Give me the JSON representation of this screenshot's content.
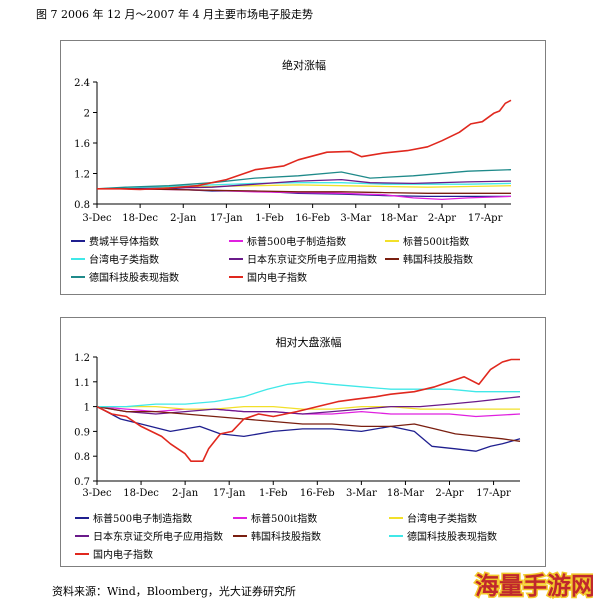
{
  "figure_title": "图 7 2006 年 12 月～2007 年 4 月主要市场电子股走势",
  "source": "资料来源：Wind，Bloomberg，光大证券研究所",
  "watermark": {
    "text": "海量手游网",
    "color": "#c0282c",
    "stroke_color": "#f3c92b"
  },
  "chart_data": [
    {
      "type": "line",
      "title": "绝对涨幅",
      "x_labels": [
        "3-Dec",
        "18-Dec",
        "2-Jan",
        "17-Jan",
        "1-Feb",
        "16-Feb",
        "3-Mar",
        "18-Mar",
        "2-Apr",
        "17-Apr"
      ],
      "x_range": [
        "2006-12-03",
        "2007-04-26"
      ],
      "ylim": [
        0.8,
        2.4
      ],
      "yticks": [
        "0.8",
        "1.2",
        "1.6",
        "2",
        "2.4"
      ],
      "grid": false,
      "legend_position": "bottom",
      "series": [
        {
          "name": "费城半导体指数",
          "color": "#1f1f8f",
          "values": [
            [
              0,
              1.0
            ],
            [
              10,
              1.0
            ],
            [
              25,
              1.0
            ],
            [
              40,
              0.97
            ],
            [
              55,
              0.97
            ],
            [
              70,
              0.94
            ],
            [
              85,
              0.93
            ],
            [
              100,
              0.91
            ],
            [
              115,
              0.9
            ],
            [
              129,
              0.9
            ],
            [
              144,
              0.9
            ]
          ]
        },
        {
          "name": "标普500电子制造指数",
          "color": "#e020e0",
          "values": [
            [
              0,
              1.0
            ],
            [
              10,
              1.0
            ],
            [
              25,
              0.99
            ],
            [
              40,
              0.98
            ],
            [
              55,
              0.96
            ],
            [
              70,
              0.95
            ],
            [
              85,
              0.94
            ],
            [
              100,
              0.92
            ],
            [
              110,
              0.88
            ],
            [
              120,
              0.86
            ],
            [
              129,
              0.88
            ],
            [
              144,
              0.9
            ]
          ]
        },
        {
          "name": "标普500it指数",
          "color": "#f2e02a",
          "values": [
            [
              0,
              1.0
            ],
            [
              10,
              1.01
            ],
            [
              25,
              1.02
            ],
            [
              40,
              1.03
            ],
            [
              55,
              1.04
            ],
            [
              70,
              1.05
            ],
            [
              85,
              1.04
            ],
            [
              100,
              1.03
            ],
            [
              115,
              1.02
            ],
            [
              129,
              1.03
            ],
            [
              144,
              1.04
            ]
          ]
        },
        {
          "name": "台湾电子类指数",
          "color": "#40e8e8",
          "values": [
            [
              0,
              1.0
            ],
            [
              10,
              1.01
            ],
            [
              25,
              1.03
            ],
            [
              40,
              1.05
            ],
            [
              55,
              1.07
            ],
            [
              70,
              1.08
            ],
            [
              85,
              1.08
            ],
            [
              100,
              1.06
            ],
            [
              115,
              1.06
            ],
            [
              129,
              1.06
            ],
            [
              144,
              1.07
            ]
          ]
        },
        {
          "name": "日本东京证交所电子应用指数",
          "color": "#6a1a8a",
          "values": [
            [
              0,
              1.0
            ],
            [
              10,
              1.0
            ],
            [
              25,
              1.01
            ],
            [
              40,
              1.02
            ],
            [
              55,
              1.06
            ],
            [
              70,
              1.1
            ],
            [
              85,
              1.12
            ],
            [
              95,
              1.08
            ],
            [
              110,
              1.07
            ],
            [
              129,
              1.09
            ],
            [
              144,
              1.1
            ]
          ]
        },
        {
          "name": "韩国科技股指数",
          "color": "#7a1f10",
          "values": [
            [
              0,
              1.0
            ],
            [
              10,
              1.0
            ],
            [
              25,
              0.99
            ],
            [
              40,
              0.98
            ],
            [
              55,
              0.97
            ],
            [
              70,
              0.96
            ],
            [
              85,
              0.96
            ],
            [
              100,
              0.95
            ],
            [
              115,
              0.94
            ],
            [
              129,
              0.94
            ],
            [
              144,
              0.94
            ]
          ]
        },
        {
          "name": "德国科技股表现指数",
          "color": "#1f8a8a",
          "values": [
            [
              0,
              1.0
            ],
            [
              10,
              1.02
            ],
            [
              25,
              1.04
            ],
            [
              40,
              1.08
            ],
            [
              55,
              1.14
            ],
            [
              70,
              1.17
            ],
            [
              85,
              1.22
            ],
            [
              95,
              1.14
            ],
            [
              110,
              1.17
            ],
            [
              129,
              1.23
            ],
            [
              144,
              1.25
            ]
          ]
        },
        {
          "name": "国内电子指数",
          "color": "#e0281e",
          "values": [
            [
              0,
              1.0
            ],
            [
              8,
              1.0
            ],
            [
              15,
              0.99
            ],
            [
              25,
              1.01
            ],
            [
              35,
              1.04
            ],
            [
              45,
              1.12
            ],
            [
              55,
              1.25
            ],
            [
              65,
              1.3
            ],
            [
              70,
              1.38
            ],
            [
              80,
              1.48
            ],
            [
              88,
              1.49
            ],
            [
              92,
              1.42
            ],
            [
              100,
              1.47
            ],
            [
              108,
              1.5
            ],
            [
              115,
              1.55
            ],
            [
              120,
              1.63
            ],
            [
              126,
              1.74
            ],
            [
              130,
              1.85
            ],
            [
              134,
              1.88
            ],
            [
              138,
              1.99
            ],
            [
              140,
              2.02
            ],
            [
              142,
              2.12
            ],
            [
              144,
              2.16
            ]
          ]
        }
      ]
    },
    {
      "type": "line",
      "title": "相对大盘涨幅",
      "x_labels": [
        "3-Dec",
        "18-Dec",
        "2-Jan",
        "17-Jan",
        "1-Feb",
        "16-Feb",
        "3-Mar",
        "18-Mar",
        "2-Apr",
        "17-Apr"
      ],
      "x_range": [
        "2006-12-03",
        "2007-04-26"
      ],
      "ylim": [
        0.7,
        1.2
      ],
      "yticks": [
        "0.7",
        "0.8",
        "0.9",
        "1",
        "1.1",
        "1.2"
      ],
      "grid": false,
      "legend_position": "bottom",
      "series": [
        {
          "name": "标普500电子制造指数",
          "color": "#1f1f8f",
          "values": [
            [
              0,
              1.0
            ],
            [
              8,
              0.95
            ],
            [
              15,
              0.93
            ],
            [
              25,
              0.9
            ],
            [
              35,
              0.92
            ],
            [
              42,
              0.89
            ],
            [
              50,
              0.88
            ],
            [
              60,
              0.9
            ],
            [
              70,
              0.91
            ],
            [
              80,
              0.91
            ],
            [
              90,
              0.9
            ],
            [
              100,
              0.92
            ],
            [
              108,
              0.9
            ],
            [
              114,
              0.84
            ],
            [
              122,
              0.83
            ],
            [
              129,
              0.82
            ],
            [
              134,
              0.84
            ],
            [
              138,
              0.85
            ],
            [
              144,
              0.87
            ]
          ]
        },
        {
          "name": "标普500it指数",
          "color": "#e020e0",
          "values": [
            [
              0,
              1.0
            ],
            [
              10,
              0.99
            ],
            [
              20,
              0.98
            ],
            [
              30,
              0.99
            ],
            [
              40,
              0.99
            ],
            [
              50,
              0.98
            ],
            [
              60,
              0.98
            ],
            [
              70,
              0.97
            ],
            [
              80,
              0.97
            ],
            [
              90,
              0.98
            ],
            [
              100,
              0.97
            ],
            [
              110,
              0.97
            ],
            [
              120,
              0.97
            ],
            [
              129,
              0.96
            ],
            [
              144,
              0.97
            ]
          ]
        },
        {
          "name": "台湾电子类指数",
          "color": "#f2e02a",
          "values": [
            [
              0,
              1.0
            ],
            [
              10,
              1.0
            ],
            [
              20,
              1.0
            ],
            [
              30,
              0.99
            ],
            [
              40,
              0.99
            ],
            [
              50,
              1.0
            ],
            [
              60,
              1.0
            ],
            [
              70,
              0.99
            ],
            [
              80,
              0.99
            ],
            [
              90,
              1.0
            ],
            [
              100,
              1.0
            ],
            [
              110,
              0.99
            ],
            [
              120,
              0.99
            ],
            [
              129,
              0.99
            ],
            [
              144,
              0.99
            ]
          ]
        },
        {
          "name": "日本东京证交所电子应用指数",
          "color": "#6a1a8a",
          "values": [
            [
              0,
              1.0
            ],
            [
              10,
              0.98
            ],
            [
              20,
              0.97
            ],
            [
              30,
              0.98
            ],
            [
              40,
              0.99
            ],
            [
              50,
              0.98
            ],
            [
              60,
              0.98
            ],
            [
              70,
              0.97
            ],
            [
              80,
              0.98
            ],
            [
              90,
              0.99
            ],
            [
              100,
              1.0
            ],
            [
              110,
              1.0
            ],
            [
              120,
              1.01
            ],
            [
              129,
              1.02
            ],
            [
              144,
              1.04
            ]
          ]
        },
        {
          "name": "韩国科技股指数",
          "color": "#7a1f10",
          "values": [
            [
              0,
              1.0
            ],
            [
              10,
              0.98
            ],
            [
              20,
              0.98
            ],
            [
              30,
              0.97
            ],
            [
              40,
              0.96
            ],
            [
              50,
              0.95
            ],
            [
              60,
              0.94
            ],
            [
              70,
              0.93
            ],
            [
              80,
              0.93
            ],
            [
              90,
              0.92
            ],
            [
              100,
              0.92
            ],
            [
              108,
              0.93
            ],
            [
              115,
              0.91
            ],
            [
              122,
              0.89
            ],
            [
              130,
              0.88
            ],
            [
              138,
              0.87
            ],
            [
              144,
              0.86
            ]
          ]
        },
        {
          "name": "德国科技股表现指数",
          "color": "#40e8e8",
          "values": [
            [
              0,
              1.0
            ],
            [
              10,
              1.0
            ],
            [
              20,
              1.01
            ],
            [
              30,
              1.01
            ],
            [
              40,
              1.02
            ],
            [
              50,
              1.04
            ],
            [
              58,
              1.07
            ],
            [
              65,
              1.09
            ],
            [
              72,
              1.1
            ],
            [
              80,
              1.09
            ],
            [
              90,
              1.08
            ],
            [
              100,
              1.07
            ],
            [
              110,
              1.07
            ],
            [
              120,
              1.07
            ],
            [
              129,
              1.06
            ],
            [
              144,
              1.06
            ]
          ]
        },
        {
          "name": "国内电子指数",
          "color": "#e0281e",
          "values": [
            [
              0,
              1.0
            ],
            [
              5,
              0.97
            ],
            [
              10,
              0.96
            ],
            [
              15,
              0.92
            ],
            [
              22,
              0.88
            ],
            [
              25,
              0.85
            ],
            [
              30,
              0.81
            ],
            [
              32,
              0.78
            ],
            [
              36,
              0.78
            ],
            [
              38,
              0.83
            ],
            [
              42,
              0.89
            ],
            [
              46,
              0.9
            ],
            [
              50,
              0.95
            ],
            [
              55,
              0.97
            ],
            [
              60,
              0.96
            ],
            [
              68,
              0.98
            ],
            [
              75,
              1.0
            ],
            [
              82,
              1.02
            ],
            [
              88,
              1.03
            ],
            [
              95,
              1.04
            ],
            [
              100,
              1.05
            ],
            [
              108,
              1.06
            ],
            [
              115,
              1.08
            ],
            [
              120,
              1.1
            ],
            [
              125,
              1.12
            ],
            [
              130,
              1.09
            ],
            [
              134,
              1.15
            ],
            [
              138,
              1.18
            ],
            [
              141,
              1.19
            ],
            [
              144,
              1.19
            ]
          ]
        }
      ]
    }
  ]
}
